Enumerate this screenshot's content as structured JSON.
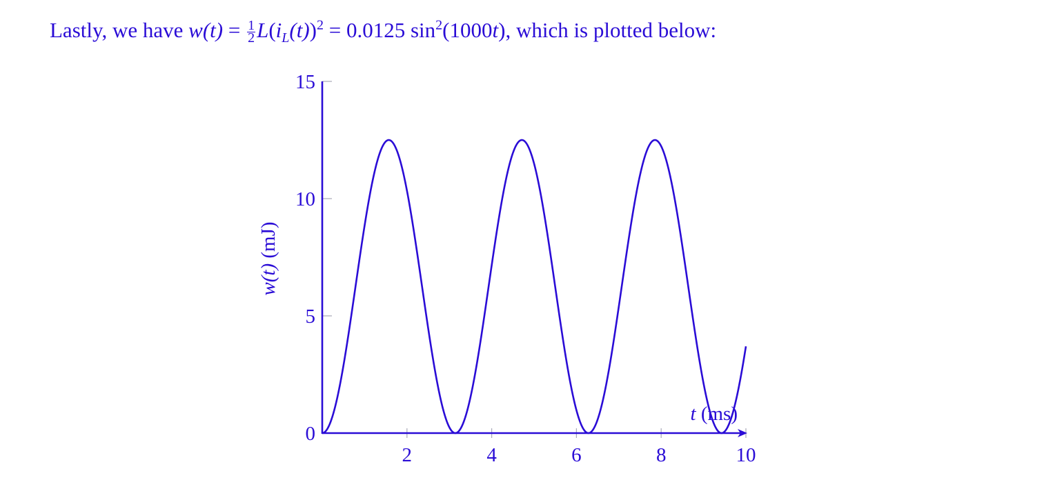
{
  "theme": {
    "ink": "#2a0cd6"
  },
  "intro": {
    "prefix": "Lastly, we have ",
    "w_t": "w(t)",
    "eq1": " = ",
    "frac_num": "1",
    "frac_den": "2",
    "L": "L",
    "paren_open": "(",
    "i": "i",
    "sub_L": "L",
    "paren_t": "(t)",
    "paren_close": ")",
    "sup_2a": "2",
    "eq2": " = 0.0125",
    "sin": " sin",
    "sup_2b": "2",
    "arg": "(1000",
    "arg_t": "t",
    "arg_close": ")",
    "suffix": ", which is plotted below:"
  },
  "chart_data": {
    "type": "line",
    "title": "",
    "xlabel_var": "t",
    "xlabel_unit": " (ms)",
    "ylabel_var": "w(t)",
    "ylabel_unit": " (mJ)",
    "xlim": [
      0,
      10
    ],
    "ylim": [
      0,
      15
    ],
    "x_ticks": [
      2,
      4,
      6,
      8,
      10
    ],
    "y_ticks": [
      0,
      5,
      10,
      15
    ],
    "series": [
      {
        "function": "12.5*sin^2(t)",
        "x_range": [
          0,
          10
        ],
        "peaks": [
          [
            1.571,
            12.5
          ],
          [
            4.712,
            12.5
          ],
          [
            7.854,
            12.5
          ]
        ],
        "zeros": [
          0,
          3.142,
          6.283,
          9.425
        ],
        "end_point": [
          10,
          3.7
        ]
      }
    ]
  }
}
